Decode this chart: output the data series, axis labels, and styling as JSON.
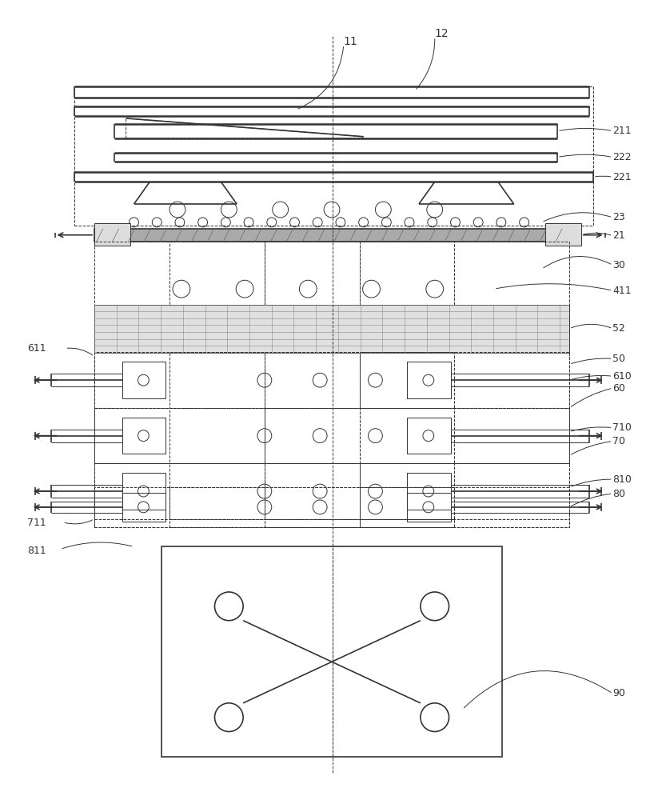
{
  "fig_width": 8.33,
  "fig_height": 10.0,
  "dpi": 100,
  "bg_color": "#ffffff",
  "lc": "#333333",
  "lw_thin": 0.7,
  "lw_med": 1.2,
  "lw_thick": 1.8
}
